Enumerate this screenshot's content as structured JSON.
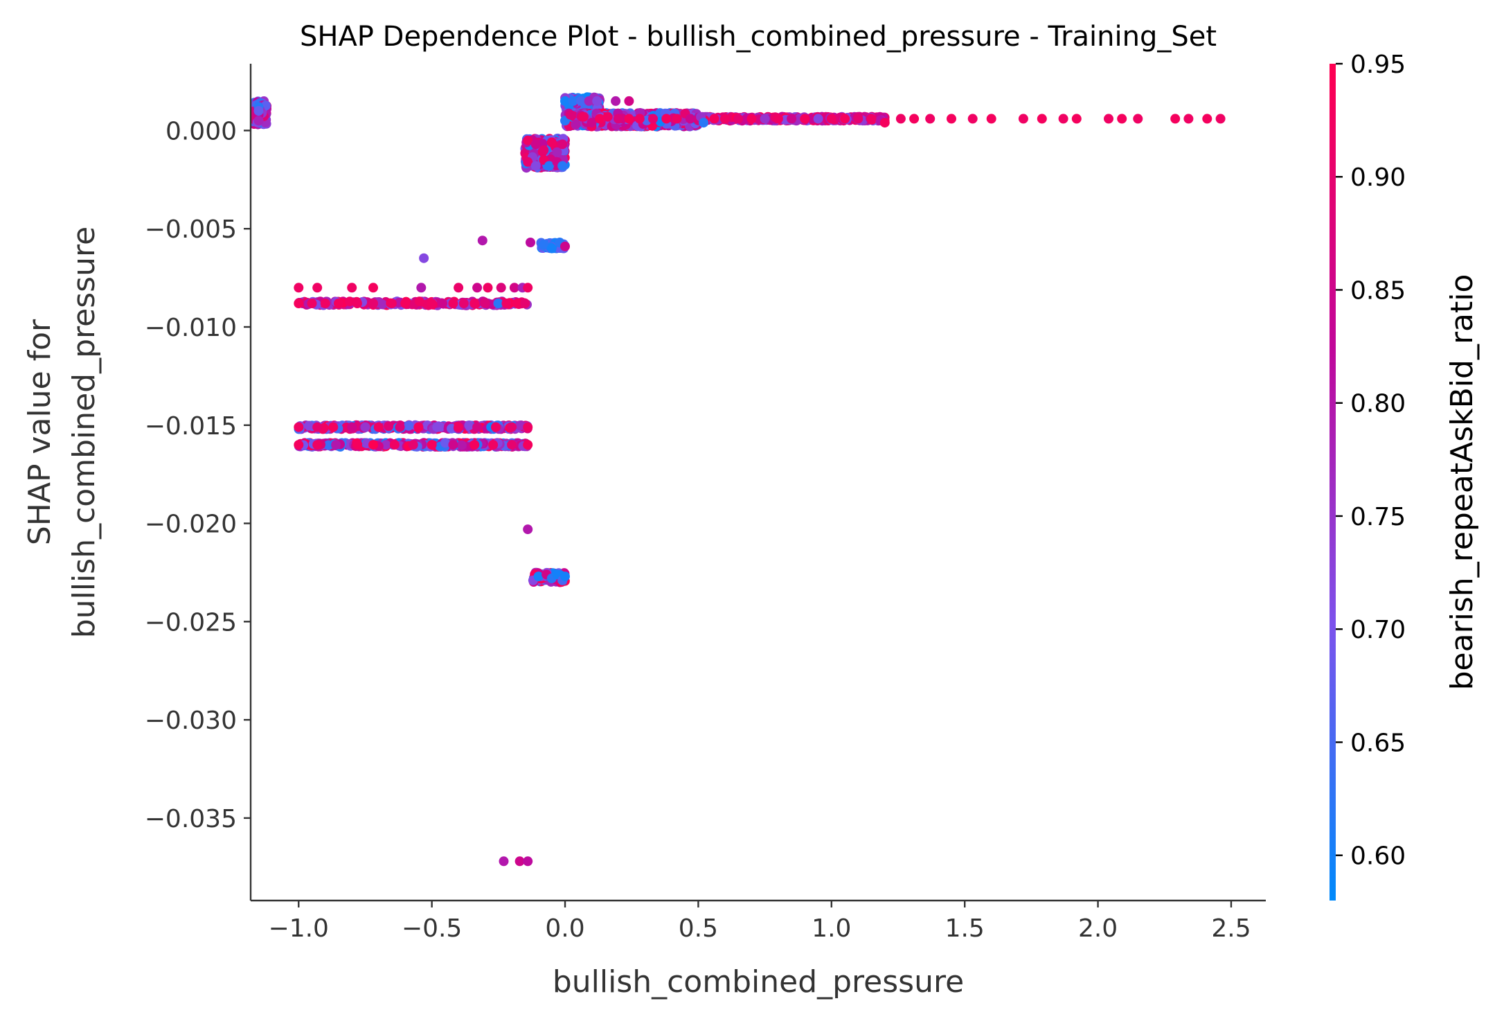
{
  "chart_data": {
    "type": "scatter",
    "title": "SHAP Dependence Plot - bullish_combined_pressure - Training_Set",
    "xlabel": "bullish_combined_pressure",
    "ylabel_line1": "SHAP value for",
    "ylabel_line2": "bullish_combined_pressure",
    "colorbar_label": "bearish_repeatAskBid_ratio",
    "xlim": [
      -1.18,
      2.63
    ],
    "ylim": [
      -0.0392,
      0.0034
    ],
    "x_ticks": [
      -1.0,
      -0.5,
      0.0,
      0.5,
      1.0,
      1.5,
      2.0,
      2.5
    ],
    "x_tick_labels": [
      "−1.0",
      "−0.5",
      "0.0",
      "0.5",
      "1.0",
      "1.5",
      "2.0",
      "2.5"
    ],
    "y_ticks": [
      0.0,
      -0.005,
      -0.01,
      -0.015,
      -0.02,
      -0.025,
      -0.03,
      -0.035
    ],
    "y_tick_labels": [
      "0.000",
      "−0.005",
      "−0.010",
      "−0.015",
      "−0.020",
      "−0.025",
      "−0.030",
      "−0.035"
    ],
    "color_range": [
      0.58,
      0.95
    ],
    "colorbar_ticks": [
      0.6,
      0.65,
      0.7,
      0.75,
      0.8,
      0.85,
      0.9,
      0.95
    ],
    "colorbar_tick_labels": [
      "0.60",
      "0.65",
      "0.70",
      "0.75",
      "0.80",
      "0.85",
      "0.90",
      "0.95"
    ],
    "colormap": [
      "#008afb",
      "#7c52ec",
      "#c1079a",
      "#ff0051"
    ],
    "points": [
      [
        -1.15,
        0.0012,
        0.62
      ],
      [
        -1.15,
        0.0008,
        0.84
      ],
      [
        -1.15,
        0.0005,
        0.78
      ],
      [
        -1.15,
        0.001,
        0.68
      ],
      [
        -1.0,
        -0.008,
        0.92
      ],
      [
        -0.93,
        -0.008,
        0.92
      ],
      [
        -0.8,
        -0.008,
        0.92
      ],
      [
        -0.72,
        -0.008,
        0.93
      ],
      [
        -0.54,
        -0.008,
        0.8
      ],
      [
        -0.4,
        -0.008,
        0.91
      ],
      [
        -0.33,
        -0.008,
        0.85
      ],
      [
        -0.29,
        -0.008,
        0.92
      ],
      [
        -0.24,
        -0.008,
        0.88
      ],
      [
        -0.19,
        -0.008,
        0.86
      ],
      [
        -0.16,
        -0.008,
        0.78
      ],
      [
        -0.14,
        -0.008,
        0.92
      ],
      [
        -1.0,
        -0.0088,
        0.93
      ],
      [
        -0.95,
        -0.0088,
        0.92
      ],
      [
        -0.9,
        -0.0088,
        0.92
      ],
      [
        -0.85,
        -0.0088,
        0.93
      ],
      [
        -0.78,
        -0.0088,
        0.92
      ],
      [
        -0.72,
        -0.0088,
        0.9
      ],
      [
        -0.65,
        -0.0088,
        0.92
      ],
      [
        -0.6,
        -0.0088,
        0.93
      ],
      [
        -0.5,
        -0.0088,
        0.92
      ],
      [
        -0.46,
        -0.0088,
        0.85
      ],
      [
        -0.42,
        -0.0088,
        0.92
      ],
      [
        -0.38,
        -0.0088,
        0.9
      ],
      [
        -0.34,
        -0.0088,
        0.92
      ],
      [
        -0.3,
        -0.0088,
        0.88
      ],
      [
        -0.25,
        -0.0088,
        0.62
      ],
      [
        -0.22,
        -0.0088,
        0.92
      ],
      [
        -0.18,
        -0.0088,
        0.93
      ],
      [
        -0.15,
        -0.0088,
        0.9
      ],
      [
        -0.53,
        -0.0065,
        0.72
      ],
      [
        -0.31,
        -0.0056,
        0.8
      ],
      [
        -1.0,
        -0.0151,
        0.92
      ],
      [
        -0.93,
        -0.0151,
        0.9
      ],
      [
        -0.87,
        -0.0151,
        0.93
      ],
      [
        -0.8,
        -0.0151,
        0.85
      ],
      [
        -0.75,
        -0.0151,
        0.75
      ],
      [
        -0.7,
        -0.0151,
        0.92
      ],
      [
        -0.62,
        -0.0151,
        0.88
      ],
      [
        -0.55,
        -0.0151,
        0.93
      ],
      [
        -0.48,
        -0.0151,
        0.72
      ],
      [
        -0.4,
        -0.0151,
        0.92
      ],
      [
        -0.33,
        -0.0151,
        0.86
      ],
      [
        -0.26,
        -0.0151,
        0.92
      ],
      [
        -0.2,
        -0.0151,
        0.9
      ],
      [
        -0.14,
        -0.0151,
        0.92
      ],
      [
        -1.0,
        -0.016,
        0.93
      ],
      [
        -0.93,
        -0.016,
        0.92
      ],
      [
        -0.86,
        -0.016,
        0.8
      ],
      [
        -0.78,
        -0.016,
        0.93
      ],
      [
        -0.72,
        -0.016,
        0.95
      ],
      [
        -0.64,
        -0.016,
        0.92
      ],
      [
        -0.57,
        -0.016,
        0.9
      ],
      [
        -0.5,
        -0.016,
        0.93
      ],
      [
        -0.42,
        -0.016,
        0.85
      ],
      [
        -0.34,
        -0.016,
        0.93
      ],
      [
        -0.27,
        -0.016,
        0.92
      ],
      [
        -0.2,
        -0.016,
        0.9
      ],
      [
        -0.14,
        -0.016,
        0.93
      ],
      [
        -0.14,
        -0.0203,
        0.8
      ],
      [
        -0.12,
        -0.0229,
        0.72
      ],
      [
        -0.1,
        -0.0227,
        0.6
      ],
      [
        -0.07,
        -0.0226,
        0.86
      ],
      [
        -0.05,
        -0.0228,
        0.62
      ],
      [
        -0.03,
        -0.0226,
        0.6
      ],
      [
        -0.01,
        -0.0229,
        0.65
      ],
      [
        0.0,
        -0.0227,
        0.6
      ],
      [
        -0.23,
        -0.0372,
        0.8
      ],
      [
        -0.17,
        -0.0372,
        0.85
      ],
      [
        -0.14,
        -0.0372,
        0.82
      ],
      [
        -0.13,
        -0.0057,
        0.82
      ],
      [
        -0.08,
        -0.0058,
        0.62
      ],
      [
        -0.05,
        -0.006,
        0.6
      ],
      [
        -0.02,
        -0.0057,
        0.62
      ],
      [
        0.0,
        -0.0059,
        0.85
      ],
      [
        -0.14,
        -0.0005,
        0.92
      ],
      [
        -0.11,
        -0.0007,
        0.85
      ],
      [
        -0.08,
        -0.001,
        0.9
      ],
      [
        -0.05,
        -0.0006,
        0.92
      ],
      [
        -0.03,
        -0.0011,
        0.78
      ],
      [
        -0.01,
        -0.0007,
        0.88
      ],
      [
        -0.14,
        -0.0016,
        0.9
      ],
      [
        -0.11,
        -0.0018,
        0.72
      ],
      [
        -0.08,
        -0.0015,
        0.92
      ],
      [
        -0.06,
        -0.0018,
        0.62
      ],
      [
        -0.03,
        -0.0016,
        0.85
      ],
      [
        -0.01,
        -0.0018,
        0.62
      ],
      [
        0.0,
        0.0015,
        0.6
      ],
      [
        0.03,
        0.0015,
        0.62
      ],
      [
        0.06,
        0.0015,
        0.65
      ],
      [
        0.09,
        0.0015,
        0.78
      ],
      [
        0.12,
        0.0015,
        0.72
      ],
      [
        0.19,
        0.0015,
        0.8
      ],
      [
        0.24,
        0.0015,
        0.86
      ],
      [
        0.0,
        0.0005,
        0.62
      ],
      [
        0.02,
        0.0008,
        0.88
      ],
      [
        0.04,
        0.0003,
        0.8
      ],
      [
        0.07,
        0.0007,
        0.92
      ],
      [
        0.1,
        0.0004,
        0.85
      ],
      [
        0.13,
        0.0006,
        0.93
      ],
      [
        0.16,
        0.0007,
        0.92
      ],
      [
        0.2,
        0.0006,
        0.88
      ],
      [
        0.24,
        0.0006,
        0.93
      ],
      [
        0.28,
        0.0006,
        0.92
      ],
      [
        0.33,
        0.0006,
        0.9
      ],
      [
        0.38,
        0.0006,
        0.93
      ],
      [
        0.42,
        0.0006,
        0.92
      ],
      [
        0.47,
        0.0006,
        0.85
      ],
      [
        0.52,
        0.0004,
        0.62
      ],
      [
        0.56,
        0.0006,
        0.93
      ],
      [
        0.6,
        0.0006,
        0.92
      ],
      [
        0.65,
        0.0006,
        0.9
      ],
      [
        0.7,
        0.0006,
        0.93
      ],
      [
        0.75,
        0.0006,
        0.75
      ],
      [
        0.8,
        0.0006,
        0.92
      ],
      [
        0.85,
        0.0006,
        0.85
      ],
      [
        0.9,
        0.0006,
        0.93
      ],
      [
        0.95,
        0.0006,
        0.72
      ],
      [
        1.0,
        0.0006,
        0.92
      ],
      [
        1.05,
        0.0006,
        0.93
      ],
      [
        1.1,
        0.0006,
        0.9
      ],
      [
        1.15,
        0.0006,
        0.92
      ],
      [
        1.2,
        0.0004,
        0.93
      ],
      [
        1.26,
        0.0006,
        0.92
      ],
      [
        1.31,
        0.0006,
        0.93
      ],
      [
        1.37,
        0.0006,
        0.92
      ],
      [
        1.45,
        0.0006,
        0.93
      ],
      [
        1.53,
        0.0006,
        0.92
      ],
      [
        1.6,
        0.0006,
        0.93
      ],
      [
        1.72,
        0.0006,
        0.92
      ],
      [
        1.79,
        0.0006,
        0.93
      ],
      [
        1.87,
        0.0006,
        0.92
      ],
      [
        1.92,
        0.0006,
        0.93
      ],
      [
        2.04,
        0.0006,
        0.92
      ],
      [
        2.09,
        0.0006,
        0.93
      ],
      [
        2.15,
        0.0006,
        0.92
      ],
      [
        2.29,
        0.0006,
        0.93
      ],
      [
        2.34,
        0.0006,
        0.92
      ],
      [
        2.41,
        0.0006,
        0.93
      ],
      [
        2.46,
        0.0006,
        0.92
      ]
    ],
    "clusters": [
      {
        "x": [
          -1.17,
          -1.12
        ],
        "y": [
          0.0003,
          0.0015
        ],
        "c": [
          0.62,
          0.9
        ],
        "n": 140
      },
      {
        "x": [
          -1.0,
          -0.14
        ],
        "y": [
          -0.0152,
          -0.015
        ],
        "c": [
          0.6,
          0.95
        ],
        "n": 420
      },
      {
        "x": [
          -1.0,
          -0.14
        ],
        "y": [
          -0.0161,
          -0.0159
        ],
        "c": [
          0.6,
          0.95
        ],
        "n": 420
      },
      {
        "x": [
          -1.0,
          -0.14
        ],
        "y": [
          -0.0089,
          -0.0087
        ],
        "c": [
          0.7,
          0.95
        ],
        "n": 200
      },
      {
        "x": [
          -0.15,
          0.0
        ],
        "y": [
          -0.0019,
          -0.0004
        ],
        "c": [
          0.6,
          0.95
        ],
        "n": 320
      },
      {
        "x": [
          -0.09,
          0.0
        ],
        "y": [
          -0.006,
          -0.0057
        ],
        "c": [
          0.58,
          0.7
        ],
        "n": 60
      },
      {
        "x": [
          -0.12,
          0.0
        ],
        "y": [
          -0.023,
          -0.0225
        ],
        "c": [
          0.58,
          0.95
        ],
        "n": 80
      },
      {
        "x": [
          0.0,
          0.13
        ],
        "y": [
          0.0011,
          0.0017
        ],
        "c": [
          0.58,
          0.82
        ],
        "n": 160
      },
      {
        "x": [
          0.0,
          0.5
        ],
        "y": [
          0.0002,
          0.0009
        ],
        "c": [
          0.58,
          0.95
        ],
        "n": 700
      },
      {
        "x": [
          0.5,
          1.2
        ],
        "y": [
          0.0005,
          0.0007
        ],
        "c": [
          0.7,
          0.95
        ],
        "n": 300
      }
    ]
  }
}
